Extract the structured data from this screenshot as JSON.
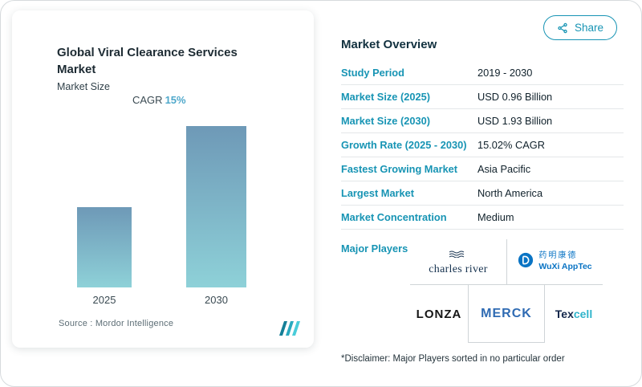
{
  "colors": {
    "accent": "#1794b4",
    "cagr_value": "#4fa8cb",
    "bar_gradient_top": "#6e99b7",
    "bar_gradient_bottom": "#8ed1d8",
    "dark_text": "#1c2b33",
    "row_divider": "#e4e7e9",
    "grid_line": "#cfd4d7"
  },
  "share": {
    "label": "Share"
  },
  "chart": {
    "title": "Global Viral Clearance Services Market",
    "subtitle": "Market Size",
    "cagr_label": "CAGR",
    "cagr_value": "15%",
    "source": "Source : Mordor Intelligence"
  },
  "chart_data": {
    "type": "bar",
    "title": "Global Viral Clearance Services Market",
    "subtitle": "Market Size",
    "categories": [
      "2025",
      "2030"
    ],
    "values": [
      0.96,
      1.93
    ],
    "unit": "USD Billion",
    "ylim": [
      0,
      2
    ],
    "grid": false,
    "annotations": [
      "CAGR 15%"
    ],
    "source": "Mordor Intelligence",
    "legend": "none"
  },
  "overview": {
    "title": "Market Overview",
    "rows": [
      {
        "label": "Study Period",
        "value": "2019 - 2030"
      },
      {
        "label": "Market Size (2025)",
        "value": "USD 0.96 Billion"
      },
      {
        "label": "Market Size (2030)",
        "value": "USD 1.93 Billion"
      },
      {
        "label": "Growth Rate (2025 - 2030)",
        "value": "15.02% CAGR"
      },
      {
        "label": "Fastest Growing Market",
        "value": "Asia Pacific"
      },
      {
        "label": "Largest Market",
        "value": "North America"
      },
      {
        "label": "Market Concentration",
        "value": "Medium"
      }
    ],
    "major_players_label": "Major Players",
    "disclaimer": "*Disclaimer: Major Players sorted in no particular order"
  },
  "players": {
    "charles_river": "charles river",
    "wuxi_cn": "药明康德",
    "wuxi_en": "WuXi AppTec",
    "lonza": "LONZA",
    "merck": "MERCK",
    "texcell_part1": "Tex",
    "texcell_part2": "cell"
  },
  "icons": {
    "share": "share-nodes-icon",
    "charles_river_waves": "waves-icon",
    "wuxi_mark": "wuxi-circle-icon",
    "mordor_logo": "mordor-intelligence-logo"
  }
}
